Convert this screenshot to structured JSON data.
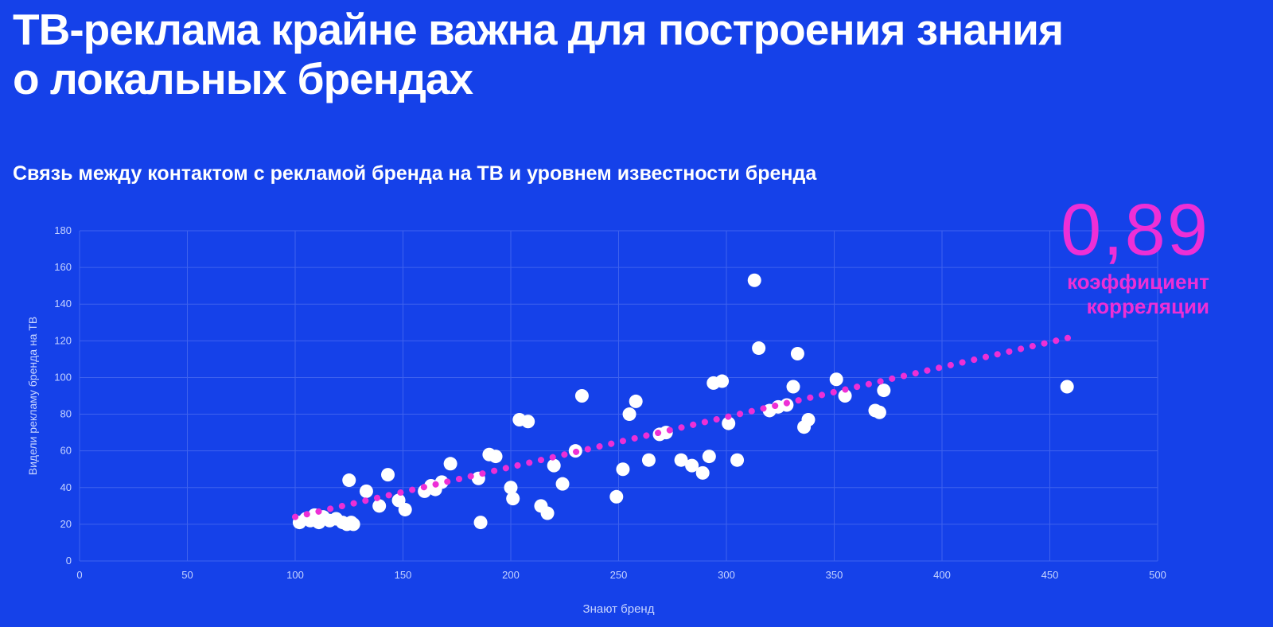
{
  "slide": {
    "title_line1": "ТВ-реклама крайне важна для построения знания",
    "title_line2": "о локальных брендах",
    "subtitle": "Связь между контактом с рекламой бренда на ТВ и уровнем известности бренда",
    "correlation_value": "0,89",
    "correlation_label_line1": "коэффициент",
    "correlation_label_line2": "корреляции"
  },
  "colors": {
    "background": "#1541e9",
    "grid": "#3f62ee",
    "tick_text": "#c7d4ff",
    "axis_label_text": "#c7d4ff",
    "point": "#ffffff",
    "trend": "#ed2fd6",
    "accent_magenta": "#ed2fd6",
    "title_text": "#ffffff"
  },
  "chart_data": {
    "type": "scatter",
    "title": "Связь между контактом с рекламой бренда на ТВ и уровнем известности бренда",
    "xlabel": "Знают бренд",
    "ylabel": "Видели рекламу бренда на ТВ",
    "xlim": [
      0,
      500
    ],
    "ylim": [
      0,
      180
    ],
    "x_ticks": [
      0,
      50,
      100,
      150,
      200,
      250,
      300,
      350,
      400,
      450,
      500
    ],
    "y_ticks": [
      0,
      20,
      40,
      60,
      80,
      100,
      120,
      140,
      160,
      180
    ],
    "grid": true,
    "legend": "none",
    "correlation": 0.89,
    "points": [
      [
        102,
        21
      ],
      [
        105,
        23
      ],
      [
        107,
        22
      ],
      [
        109,
        25
      ],
      [
        111,
        21
      ],
      [
        113,
        24
      ],
      [
        116,
        22
      ],
      [
        119,
        23
      ],
      [
        122,
        21
      ],
      [
        124,
        20
      ],
      [
        126,
        21
      ],
      [
        127,
        20
      ],
      [
        125,
        44
      ],
      [
        133,
        38
      ],
      [
        139,
        30
      ],
      [
        143,
        47
      ],
      [
        148,
        33
      ],
      [
        151,
        28
      ],
      [
        160,
        38
      ],
      [
        163,
        41
      ],
      [
        165,
        39
      ],
      [
        168,
        43
      ],
      [
        172,
        53
      ],
      [
        185,
        45
      ],
      [
        186,
        21
      ],
      [
        190,
        58
      ],
      [
        193,
        57
      ],
      [
        200,
        40
      ],
      [
        201,
        34
      ],
      [
        204,
        77
      ],
      [
        208,
        76
      ],
      [
        214,
        30
      ],
      [
        217,
        26
      ],
      [
        220,
        52
      ],
      [
        224,
        42
      ],
      [
        230,
        60
      ],
      [
        233,
        90
      ],
      [
        249,
        35
      ],
      [
        252,
        50
      ],
      [
        255,
        80
      ],
      [
        258,
        87
      ],
      [
        264,
        55
      ],
      [
        269,
        69
      ],
      [
        272,
        70
      ],
      [
        279,
        55
      ],
      [
        284,
        52
      ],
      [
        289,
        48
      ],
      [
        292,
        57
      ],
      [
        294,
        97
      ],
      [
        298,
        98
      ],
      [
        301,
        75
      ],
      [
        305,
        55
      ],
      [
        313,
        153
      ],
      [
        315,
        116
      ],
      [
        320,
        82
      ],
      [
        324,
        84
      ],
      [
        328,
        85
      ],
      [
        331,
        95
      ],
      [
        333,
        113
      ],
      [
        336,
        73
      ],
      [
        338,
        77
      ],
      [
        351,
        99
      ],
      [
        355,
        90
      ],
      [
        369,
        82
      ],
      [
        371,
        81
      ],
      [
        373,
        93
      ],
      [
        458,
        95
      ]
    ],
    "trend_line": {
      "x1": 100,
      "y1": 24,
      "x2": 460,
      "y2": 122,
      "style": "dotted"
    }
  }
}
